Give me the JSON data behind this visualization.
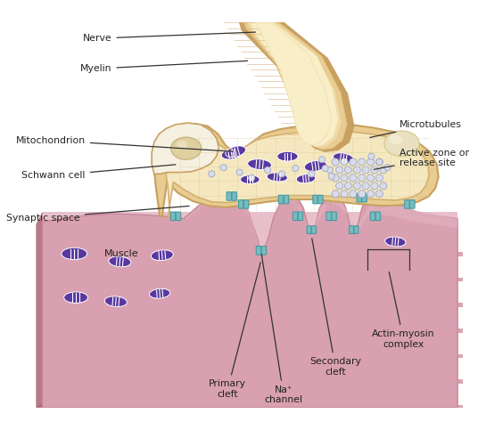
{
  "labels": {
    "nerve": "Nerve",
    "myelin": "Myelin",
    "mitochondrion": "Mitochondrion",
    "schwann_cell": "Schwann cell",
    "synaptic_space": "Synaptic space",
    "muscle": "Muscle",
    "microtubules": "Microtubules",
    "active_zone": "Active zone or\nrelease site",
    "primary_cleft": "Primary\ncleft",
    "na_channel": "Na⁺\nchannel",
    "secondary_cleft": "Secondary\ncleft",
    "actin_myosin": "Actin-myosin\ncomplex"
  },
  "colors": {
    "background": "#ffffff",
    "nerve_brown_outer": "#c8a060",
    "nerve_brown_mid": "#d4aa70",
    "nerve_tan": "#e8cc90",
    "nerve_cream": "#f0dca8",
    "nerve_light": "#f8eec8",
    "terminal_outer_edge": "#c8a060",
    "terminal_tan": "#d4b070",
    "terminal_fill": "#e8cc90",
    "terminal_inner": "#f5e8c0",
    "schwann_body_fill": "#f0e8c8",
    "nucleus_fill": "#e0d0a0",
    "nucleus_stroke": "#c8b880",
    "nucleus_light": "#c8b870",
    "terminal_nucleus_fill": "#e8e0c0",
    "muscle_pink_dark": "#c8889a",
    "muscle_pink_mid": "#d8a0b0",
    "muscle_pink_light": "#e8c0cc",
    "muscle_pink_top": "#cc8898",
    "muscle_side_dark": "#b87888",
    "muscle_bottom": "#a86878",
    "muscle_stripe_dark": "#c07888",
    "muscle_inner_pink": "#e0b0be",
    "muscle_dot": "#d0a0b0",
    "mito_purple": "#5838a0",
    "mito_line": "#ffffff",
    "vesicle_fill": "#d8dcea",
    "vesicle_edge": "#a0a8c0",
    "channel_fill": "#78bcc0",
    "channel_edge": "#4898a0",
    "grid_line": "#d8c898",
    "label_dark": "#222222",
    "line_dark": "#333333"
  }
}
